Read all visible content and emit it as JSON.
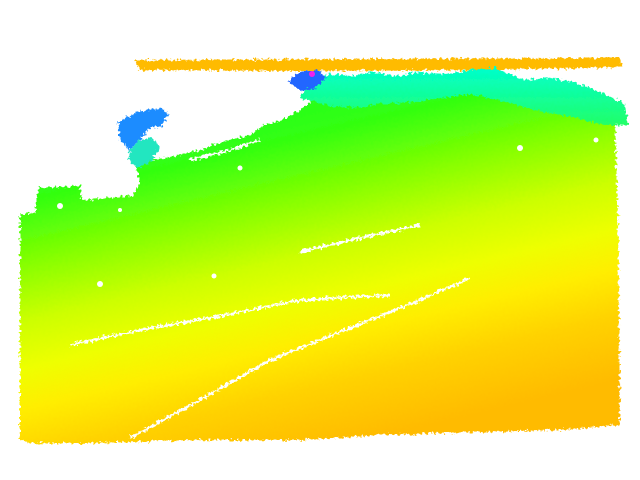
{
  "image": {
    "kind": "colorized depth map",
    "background_color": "#ffffff",
    "colormap": [
      {
        "stop": 0.0,
        "color": "#ff00ff"
      },
      {
        "stop": 0.08,
        "color": "#0000ff"
      },
      {
        "stop": 0.22,
        "color": "#00aaff"
      },
      {
        "stop": 0.36,
        "color": "#00ffcc"
      },
      {
        "stop": 0.5,
        "color": "#00ff00"
      },
      {
        "stop": 0.66,
        "color": "#aaff00"
      },
      {
        "stop": 0.8,
        "color": "#ffff00"
      },
      {
        "stop": 0.92,
        "color": "#ffcc00"
      },
      {
        "stop": 1.0,
        "color": "#ffaa00"
      }
    ]
  }
}
